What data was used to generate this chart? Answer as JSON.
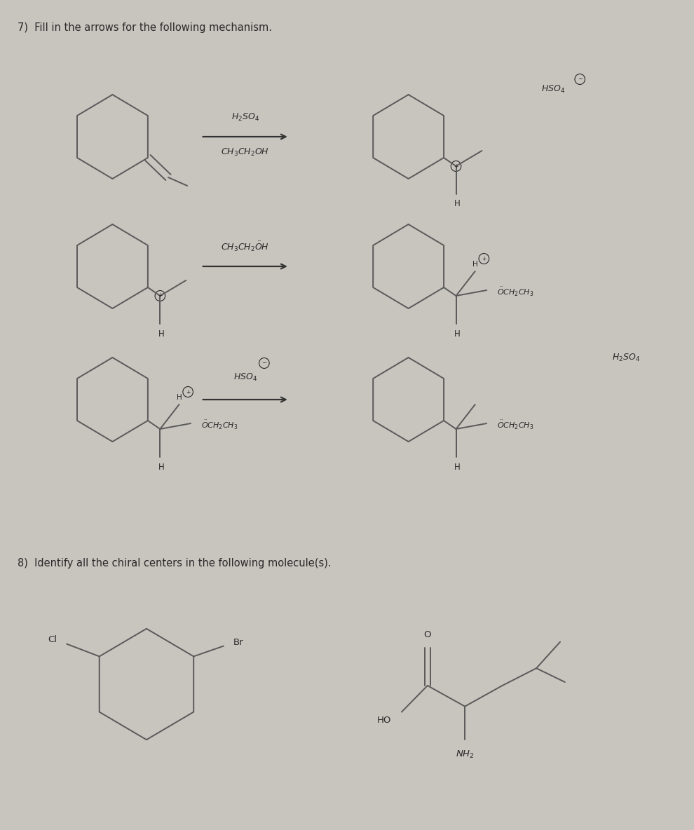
{
  "bg_color": "#c8c4be",
  "panel1_bg": "#cac6c0",
  "panel2_bg": "#c5c1bb",
  "title1": "7)  Fill in the arrows for the following mechanism.",
  "title2": "8)  Identify all the chiral centers in the following molecule(s).",
  "title_fontsize": 10.5,
  "line_color": "#5a5a5a",
  "text_color": "#2a2a2a",
  "arrow_color": "#333333"
}
